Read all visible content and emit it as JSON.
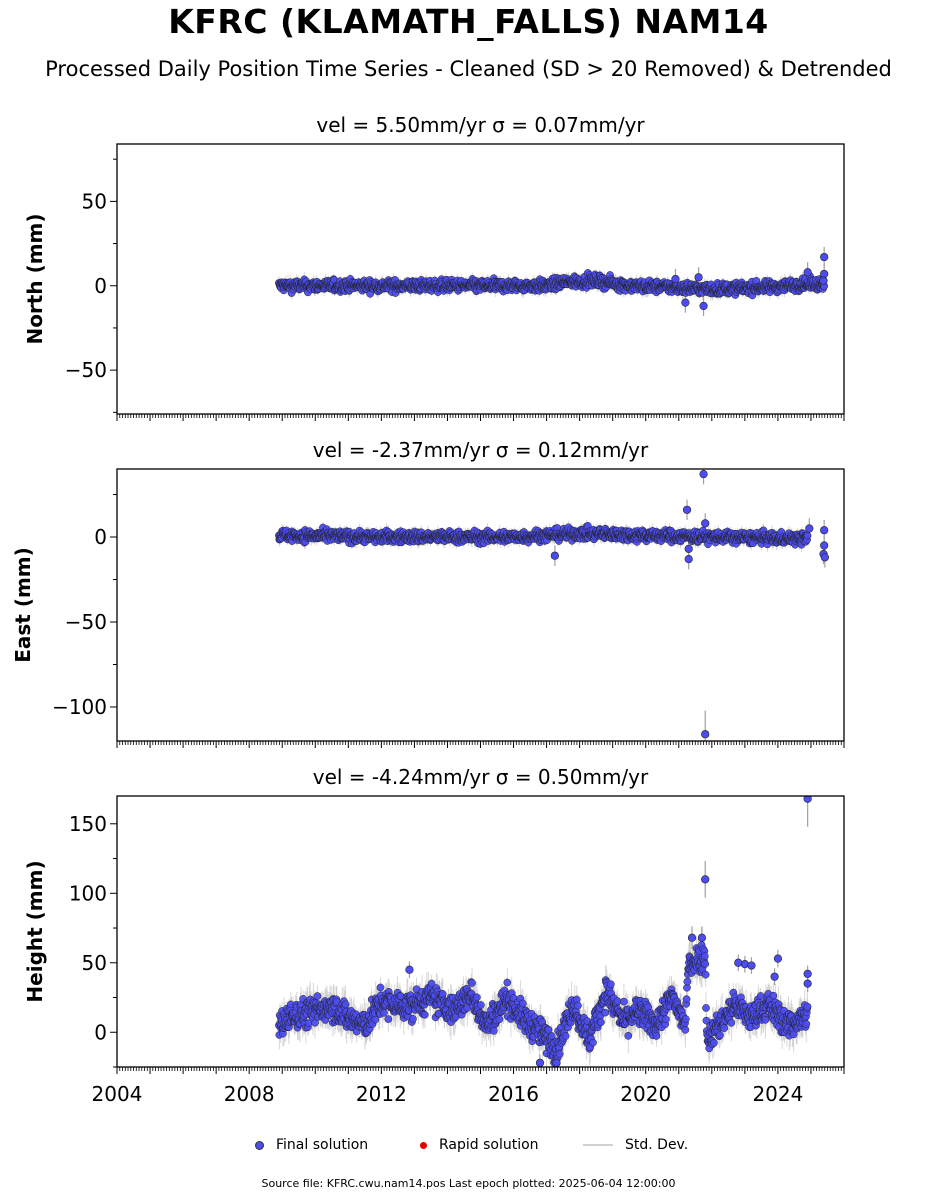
{
  "figure": {
    "title": "KFRC (KLAMATH_FALLS) NAM14",
    "subtitle": "Processed Daily Position Time Series - Cleaned (SD > 20 Removed) & Detrended"
  },
  "legend": {
    "final": "Final solution",
    "rapid": "Rapid solution",
    "std": "Std. Dev."
  },
  "footer": {
    "source": "Source file: KFRC.cwu.nam14.pos  Last epoch plotted: 2025-06-04 12:00:00"
  },
  "colors": {
    "final": "#4c4cf0",
    "final_edge": "#222222",
    "rapid": "#e00000",
    "std": "#c8c8c8"
  },
  "chart_data": [
    {
      "type": "scatter",
      "title": "vel = 5.50mm/yr   σ = 0.07mm/yr",
      "ylabel": "North (mm)",
      "xlim": [
        2004.0,
        2026.0
      ],
      "ylim": [
        -76,
        84
      ],
      "yticks": [
        -50,
        0,
        50
      ],
      "series": [
        {
          "name": "Final solution",
          "x_range": [
            2008.9,
            2025.4
          ],
          "baseline": [
            [
              2008.9,
              0
            ],
            [
              2017.0,
              0
            ],
            [
              2017.5,
              2
            ],
            [
              2018.5,
              3
            ],
            [
              2019.5,
              0
            ],
            [
              2021.0,
              -1
            ],
            [
              2022.0,
              -2
            ],
            [
              2023.5,
              -1
            ],
            [
              2024.9,
              1
            ]
          ],
          "scatter_amplitude": 3
        },
        {
          "name": "Final solution outliers",
          "points": [
            [
              2021.2,
              -10
            ],
            [
              2021.75,
              -12
            ],
            [
              2021.6,
              5
            ],
            [
              2020.9,
              4
            ],
            [
              2025.4,
              17
            ],
            [
              2025.4,
              7
            ],
            [
              2025.38,
              3
            ],
            [
              2024.9,
              8
            ]
          ]
        }
      ]
    },
    {
      "type": "scatter",
      "title": "vel = -2.37mm/yr   σ = 0.12mm/yr",
      "ylabel": "East (mm)",
      "xlim": [
        2004.0,
        2026.0
      ],
      "ylim": [
        -120,
        40
      ],
      "yticks": [
        -100,
        -50,
        0
      ],
      "series": [
        {
          "name": "Final solution",
          "x_range": [
            2008.9,
            2024.9
          ],
          "baseline": [
            [
              2008.9,
              1
            ],
            [
              2012.0,
              0
            ],
            [
              2016.0,
              0
            ],
            [
              2018.0,
              2
            ],
            [
              2020.0,
              1
            ],
            [
              2022.0,
              0
            ],
            [
              2024.9,
              -1
            ]
          ],
          "scatter_amplitude": 3
        },
        {
          "name": "Final solution outliers",
          "points": [
            [
              2021.75,
              37
            ],
            [
              2021.25,
              16
            ],
            [
              2021.3,
              -7
            ],
            [
              2021.3,
              -13
            ],
            [
              2021.8,
              8
            ],
            [
              2021.8,
              -116
            ],
            [
              2017.25,
              -11
            ],
            [
              2025.4,
              4
            ],
            [
              2025.4,
              -5
            ],
            [
              2025.38,
              -10
            ],
            [
              2025.42,
              -12
            ],
            [
              2024.95,
              5
            ]
          ]
        }
      ]
    },
    {
      "type": "scatter",
      "title": "vel = -4.24mm/yr   σ = 0.50mm/yr",
      "ylabel": "Height (mm)",
      "xlim": [
        2004.0,
        2026.0
      ],
      "ylim": [
        -25,
        170
      ],
      "yticks": [
        0,
        50,
        100,
        150
      ],
      "xticks": [
        2004,
        2008,
        2012,
        2016,
        2020,
        2024
      ],
      "series": [
        {
          "name": "Final solution",
          "x_range": [
            2008.9,
            2024.9
          ],
          "baseline": [
            [
              2008.9,
              5
            ],
            [
              2009.3,
              12
            ],
            [
              2010.0,
              15
            ],
            [
              2010.5,
              20
            ],
            [
              2011.0,
              10
            ],
            [
              2011.5,
              5
            ],
            [
              2012.0,
              22
            ],
            [
              2012.8,
              18
            ],
            [
              2013.5,
              25
            ],
            [
              2014.2,
              15
            ],
            [
              2014.7,
              28
            ],
            [
              2015.2,
              5
            ],
            [
              2015.8,
              25
            ],
            [
              2016.3,
              10
            ],
            [
              2016.8,
              0
            ],
            [
              2017.3,
              -12
            ],
            [
              2017.8,
              20
            ],
            [
              2018.3,
              -5
            ],
            [
              2018.8,
              30
            ],
            [
              2019.3,
              8
            ],
            [
              2019.8,
              15
            ],
            [
              2020.3,
              5
            ],
            [
              2020.8,
              25
            ],
            [
              2021.2,
              5
            ],
            [
              2021.3,
              50
            ],
            [
              2021.8,
              55
            ],
            [
              2021.85,
              -5
            ],
            [
              2022.2,
              5
            ],
            [
              2022.7,
              20
            ],
            [
              2023.2,
              10
            ],
            [
              2023.7,
              20
            ],
            [
              2024.3,
              5
            ],
            [
              2024.9,
              12
            ]
          ],
          "scatter_amplitude": 9
        },
        {
          "name": "Final solution outliers",
          "points": [
            [
              2021.8,
              110
            ],
            [
              2024.9,
              168
            ],
            [
              2012.85,
              45
            ],
            [
              2023.0,
              49
            ],
            [
              2022.8,
              50
            ],
            [
              2023.2,
              48
            ],
            [
              2024.0,
              53
            ],
            [
              2023.9,
              40
            ],
            [
              2024.9,
              42
            ],
            [
              2024.9,
              35
            ],
            [
              2016.8,
              -22
            ],
            [
              2017.3,
              -22
            ],
            [
              2021.7,
              68
            ],
            [
              2021.4,
              68
            ]
          ]
        }
      ]
    }
  ]
}
